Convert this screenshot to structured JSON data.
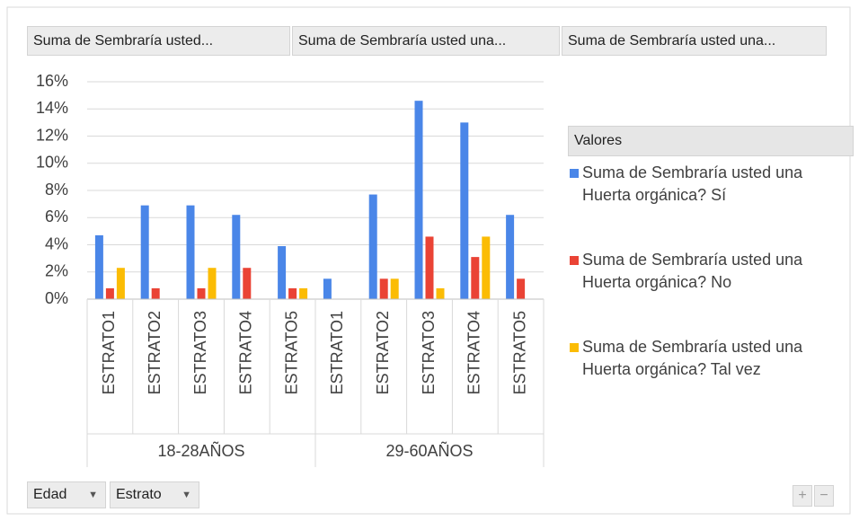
{
  "chart_data": {
    "type": "bar",
    "value_field_buttons": [
      "Suma de Sembraría usted...",
      "Suma de Sembraría usted una...",
      "Suma de Sembraría usted una..."
    ],
    "categories": [
      "ESTRATO1",
      "ESTRATO2",
      "ESTRATO3",
      "ESTRATO4",
      "ESTRATO5",
      "ESTRATO1",
      "ESTRATO2",
      "ESTRATO3",
      "ESTRATO4",
      "ESTRATO5"
    ],
    "category_groups": [
      "18-28AÑOS",
      "29-60AÑOS"
    ],
    "series": [
      {
        "name": "Suma de Sembraría usted una Huerta orgánica? Sí",
        "color": "#4a86e8",
        "values": [
          4.7,
          6.9,
          6.9,
          6.2,
          3.9,
          1.5,
          7.7,
          14.6,
          13.0,
          6.2
        ]
      },
      {
        "name": "Suma de Sembraría usted una Huerta orgánica? No",
        "color": "#ea4335",
        "values": [
          0.8,
          0.8,
          0.8,
          2.3,
          0.8,
          null,
          1.5,
          4.6,
          3.1,
          1.5
        ]
      },
      {
        "name": "Suma de Sembraría usted una Huerta orgánica? Tal vez",
        "color": "#fbbc04",
        "values": [
          2.3,
          null,
          2.3,
          null,
          0.8,
          null,
          1.5,
          0.8,
          4.6,
          null
        ]
      }
    ],
    "ylim": [
      0,
      16
    ],
    "yticks": [
      {
        "value": 0,
        "label": "0%"
      },
      {
        "value": 2,
        "label": "2%"
      },
      {
        "value": 4,
        "label": "4%"
      },
      {
        "value": 6,
        "label": "6%"
      },
      {
        "value": 8,
        "label": "8%"
      },
      {
        "value": 10,
        "label": "10%"
      },
      {
        "value": 12,
        "label": "12%"
      },
      {
        "value": 14,
        "label": "14%"
      },
      {
        "value": 16,
        "label": "16%"
      }
    ],
    "grid": true,
    "legend_title": "Valores",
    "legend_position": "right",
    "row_field_buttons": [
      "Edad",
      "Estrato"
    ]
  }
}
